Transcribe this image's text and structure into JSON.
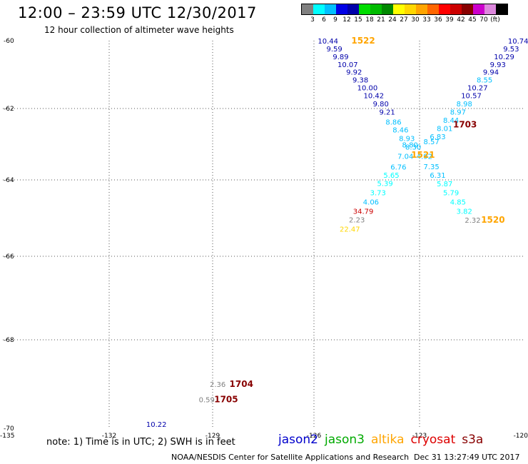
{
  "header": {
    "title": "12:00 – 23:59 UTC 12/30/2017",
    "subtitle": "12 hour collection of altimeter wave heights"
  },
  "legend": {
    "swatches": [
      "#808080",
      "#00ffff",
      "#00bfff",
      "#0000e6",
      "#0000aa",
      "#00dd00",
      "#00bb00",
      "#008800",
      "#ffff00",
      "#ffd700",
      "#ffa500",
      "#ff6600",
      "#ff0000",
      "#cc0000",
      "#880000",
      "#cc00cc",
      "#dd88dd",
      "#000000"
    ],
    "labels": [
      "3",
      "6",
      "9",
      "12",
      "15",
      "18",
      "21",
      "24",
      "27",
      "30",
      "33",
      "36",
      "39",
      "42",
      "45",
      "70",
      "(ft)"
    ]
  },
  "axes": {
    "lat_labels": [
      "-60",
      "-62",
      "-64",
      "-66",
      "-68",
      "-70"
    ],
    "lon_labels": [
      "-135",
      "-132",
      "-129",
      "-126",
      "-123",
      "-120"
    ]
  },
  "chart_data": {
    "type": "map",
    "pass_labels": [
      {
        "text": "1522",
        "color": "#ffa500",
        "lon": -124.6,
        "lat": -60.0
      },
      {
        "text": "1703",
        "color": "#880000",
        "lon": -121.7,
        "lat": -62.45
      },
      {
        "text": "1521",
        "color": "#ffa500",
        "lon": -122.9,
        "lat": -63.3
      },
      {
        "text": "1520",
        "color": "#ffa500",
        "lon": -120.9,
        "lat": -65.05
      },
      {
        "text": "1704",
        "color": "#880000",
        "lon": -128.15,
        "lat": -69.0
      },
      {
        "text": "1705",
        "color": "#880000",
        "lon": -128.6,
        "lat": -69.35
      }
    ],
    "observations": [
      {
        "value": "10.44",
        "color": "#0000aa",
        "lon": -125.6,
        "lat": -60.0
      },
      {
        "value": "9.59",
        "color": "#0000aa",
        "lon": -125.42,
        "lat": -60.23
      },
      {
        "value": "9.89",
        "color": "#0000aa",
        "lon": -125.24,
        "lat": -60.46
      },
      {
        "value": "10.07",
        "color": "#0000aa",
        "lon": -125.04,
        "lat": -60.69
      },
      {
        "value": "9.92",
        "color": "#0000aa",
        "lon": -124.86,
        "lat": -60.92
      },
      {
        "value": "9.38",
        "color": "#0000aa",
        "lon": -124.68,
        "lat": -61.15
      },
      {
        "value": "10.00",
        "color": "#0000aa",
        "lon": -124.48,
        "lat": -61.38
      },
      {
        "value": "10.42",
        "color": "#0000aa",
        "lon": -124.3,
        "lat": -61.61
      },
      {
        "value": "9.80",
        "color": "#0000aa",
        "lon": -124.1,
        "lat": -61.85
      },
      {
        "value": "9.21",
        "color": "#0000aa",
        "lon": -123.92,
        "lat": -62.09
      },
      {
        "value": "8.86",
        "color": "#00bfff",
        "lon": -123.74,
        "lat": -62.37
      },
      {
        "value": "8.46",
        "color": "#00bfff",
        "lon": -123.54,
        "lat": -62.59
      },
      {
        "value": "8.93",
        "color": "#00bfff",
        "lon": -123.36,
        "lat": -62.83
      },
      {
        "value": "8.80",
        "color": "#00bfff",
        "lon": -123.27,
        "lat": -63.01
      },
      {
        "value": "8.30",
        "color": "#00bfff",
        "lon": -123.18,
        "lat": -63.07
      },
      {
        "value": "7.04",
        "color": "#00bfff",
        "lon": -123.4,
        "lat": -63.33
      },
      {
        "value": "6.76",
        "color": "#00bfff",
        "lon": -123.6,
        "lat": -63.63
      },
      {
        "value": "5.65",
        "color": "#00ffff",
        "lon": -123.8,
        "lat": -63.86
      },
      {
        "value": "5.39",
        "color": "#00ffff",
        "lon": -123.98,
        "lat": -64.08
      },
      {
        "value": "3.73",
        "color": "#00ffff",
        "lon": -124.18,
        "lat": -64.33
      },
      {
        "value": "4.06",
        "color": "#00bfff",
        "lon": -124.38,
        "lat": -64.57
      },
      {
        "value": "34.79",
        "color": "#cc0000",
        "lon": -124.6,
        "lat": -64.81
      },
      {
        "value": "2.23",
        "color": "#808080",
        "lon": -124.78,
        "lat": -65.04
      },
      {
        "value": "22.47",
        "color": "#ffd700",
        "lon": -124.98,
        "lat": -65.28
      },
      {
        "value": "10.74",
        "color": "#0000aa",
        "lon": -120.18,
        "lat": -60.0
      },
      {
        "value": "9.53",
        "color": "#0000aa",
        "lon": -120.38,
        "lat": -60.23
      },
      {
        "value": "10.29",
        "color": "#0000aa",
        "lon": -120.58,
        "lat": -60.46
      },
      {
        "value": "9.93",
        "color": "#0000aa",
        "lon": -120.76,
        "lat": -60.69
      },
      {
        "value": "9.94",
        "color": "#0000aa",
        "lon": -120.96,
        "lat": -60.92
      },
      {
        "value": "8.55",
        "color": "#00bfff",
        "lon": -121.14,
        "lat": -61.15
      },
      {
        "value": "10.27",
        "color": "#0000aa",
        "lon": -121.34,
        "lat": -61.38
      },
      {
        "value": "10.57",
        "color": "#0000aa",
        "lon": -121.52,
        "lat": -61.61
      },
      {
        "value": "8.98",
        "color": "#00bfff",
        "lon": -121.72,
        "lat": -61.85
      },
      {
        "value": "8.97",
        "color": "#00bfff",
        "lon": -121.9,
        "lat": -62.09
      },
      {
        "value": "8.44",
        "color": "#00bfff",
        "lon": -122.1,
        "lat": -62.32
      },
      {
        "value": "8.01",
        "color": "#00bfff",
        "lon": -122.28,
        "lat": -62.55
      },
      {
        "value": "6.83",
        "color": "#00bfff",
        "lon": -122.48,
        "lat": -62.78
      },
      {
        "value": "8.57",
        "color": "#00bfff",
        "lon": -122.66,
        "lat": -62.92
      },
      {
        "value": "4.92",
        "color": "#00bfff",
        "lon": -122.86,
        "lat": -63.33
      },
      {
        "value": "7.35",
        "color": "#00bfff",
        "lon": -122.66,
        "lat": -63.62
      },
      {
        "value": "6.31",
        "color": "#00bfff",
        "lon": -122.48,
        "lat": -63.86
      },
      {
        "value": "5.87",
        "color": "#00ffff",
        "lon": -122.28,
        "lat": -64.09
      },
      {
        "value": "5.79",
        "color": "#00ffff",
        "lon": -122.1,
        "lat": -64.33
      },
      {
        "value": "4.85",
        "color": "#00ffff",
        "lon": -121.9,
        "lat": -64.57
      },
      {
        "value": "3.82",
        "color": "#00ffff",
        "lon": -121.72,
        "lat": -64.81
      },
      {
        "value": "2.32",
        "color": "#808080",
        "lon": -121.48,
        "lat": -65.05
      },
      {
        "value": "2.36",
        "color": "#808080",
        "lon": -128.85,
        "lat": -69.0
      },
      {
        "value": "0.59",
        "color": "#808080",
        "lon": -129.17,
        "lat": -69.35
      },
      {
        "value": "10.22",
        "color": "#0000aa",
        "lon": -130.63,
        "lat": -69.9
      }
    ]
  },
  "footer": {
    "note": "note: 1) Time is in UTC; 2) SWH is in feet",
    "satellites": [
      {
        "name": "jason2",
        "color": "#0000cc"
      },
      {
        "name": "jason3",
        "color": "#00aa00"
      },
      {
        "name": "altika",
        "color": "#ffa500"
      },
      {
        "name": "cryosat",
        "color": "#dd0000"
      },
      {
        "name": "s3a",
        "color": "#880000"
      }
    ],
    "credit": "NOAA/NESDIS Center for Satellite Applications and Research",
    "timestamp": "Dec 31 13:27:49 UTC 2017"
  }
}
